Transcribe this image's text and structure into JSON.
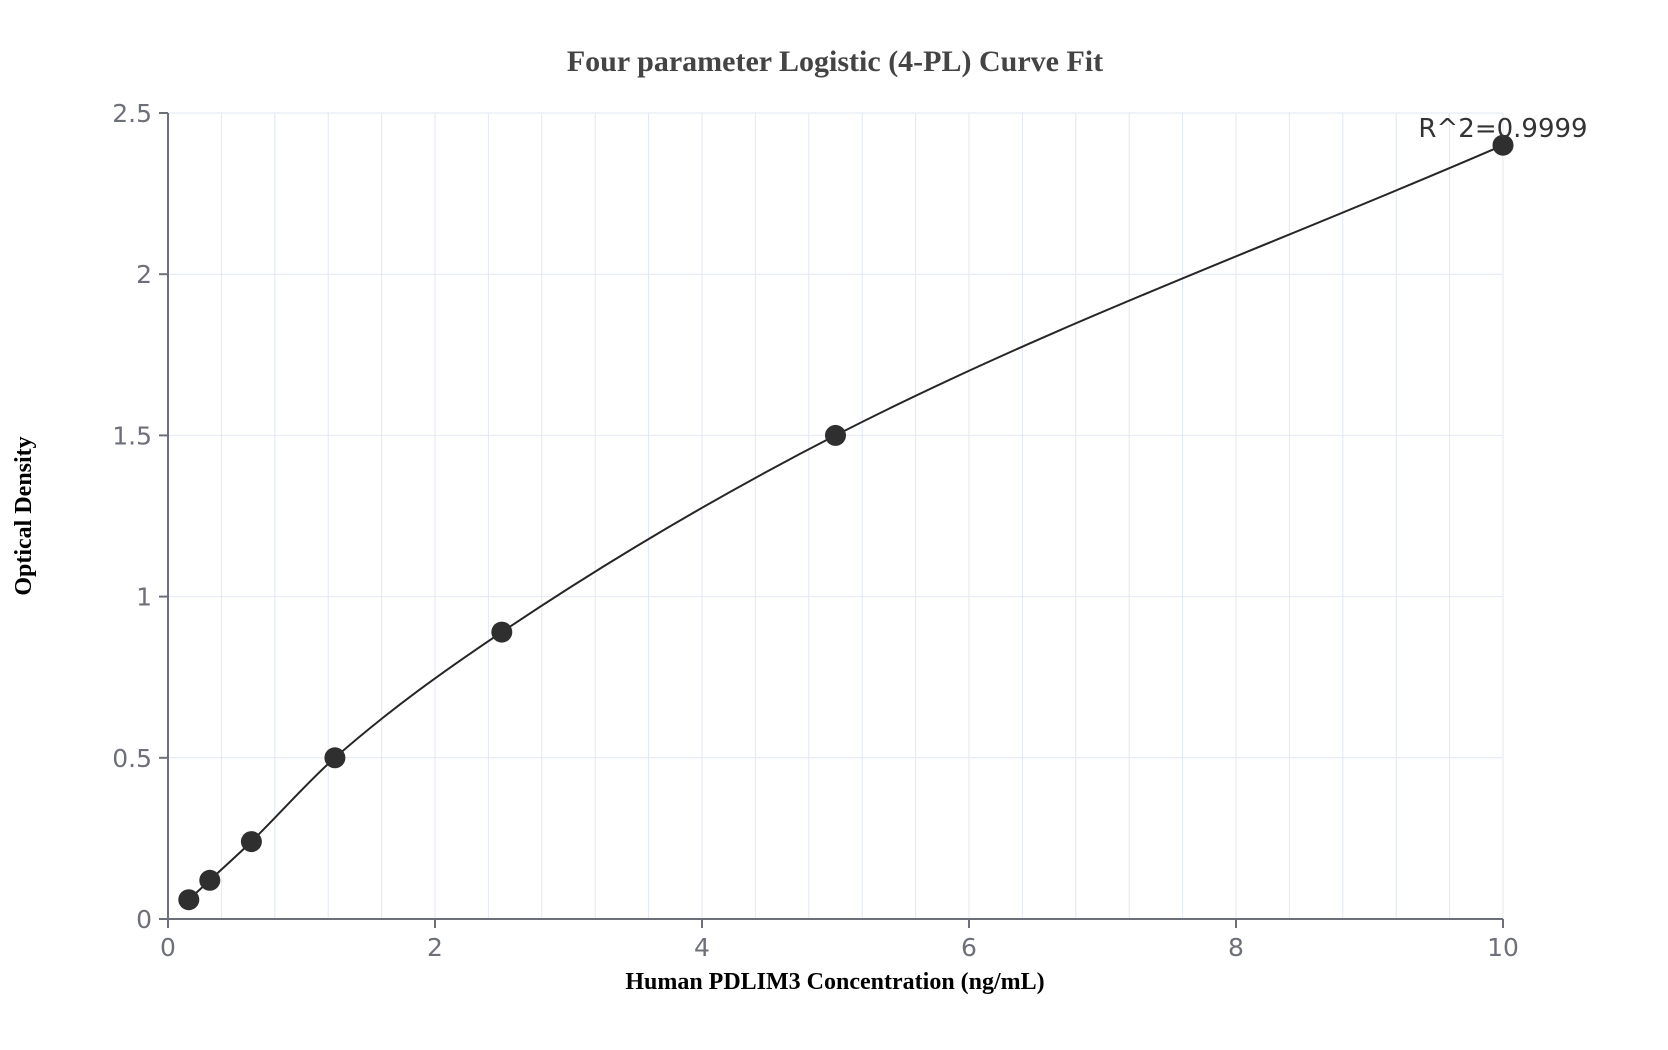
{
  "chart": {
    "title": "Four parameter Logistic (4-PL) Curve Fit",
    "xlabel": "Human PDLIM3 Concentration (ng/mL)",
    "ylabel": "Optical Density",
    "annotation": "R^2=0.9999"
  },
  "chart_data": {
    "type": "scatter",
    "title": "Four parameter Logistic (4-PL) Curve Fit",
    "xlabel": "Human PDLIM3 Concentration (ng/mL)",
    "ylabel": "Optical Density",
    "annotation": "R^2=0.9999",
    "annotation_anchor_point": {
      "x": 10,
      "y": 2.4
    },
    "series": [
      {
        "name": "standard-curve",
        "x": [
          0.156,
          0.313,
          0.625,
          1.25,
          2.5,
          5,
          10
        ],
        "y": [
          0.06,
          0.12,
          0.24,
          0.5,
          0.89,
          1.5,
          2.4
        ],
        "marker": "filled-circle",
        "fit": "4-parameter-logistic-curve"
      }
    ],
    "xlim": [
      0,
      10
    ],
    "ylim": [
      0,
      2.5
    ],
    "x_ticks": [
      0,
      2,
      4,
      6,
      8,
      10
    ],
    "y_ticks": [
      0,
      0.5,
      1,
      1.5,
      2,
      2.5
    ],
    "x_minor_grid_step": 0.4,
    "grid": true,
    "legend_position": "none",
    "colors": {
      "point": "#2f2f2f",
      "line": "#262626",
      "axis": "#6e7079",
      "grid": "#e2e8f2",
      "title": "#444444",
      "axis_label": "#000000",
      "tick_label": "#6e7079",
      "annotation": "#333333",
      "background": "#ffffff"
    }
  }
}
